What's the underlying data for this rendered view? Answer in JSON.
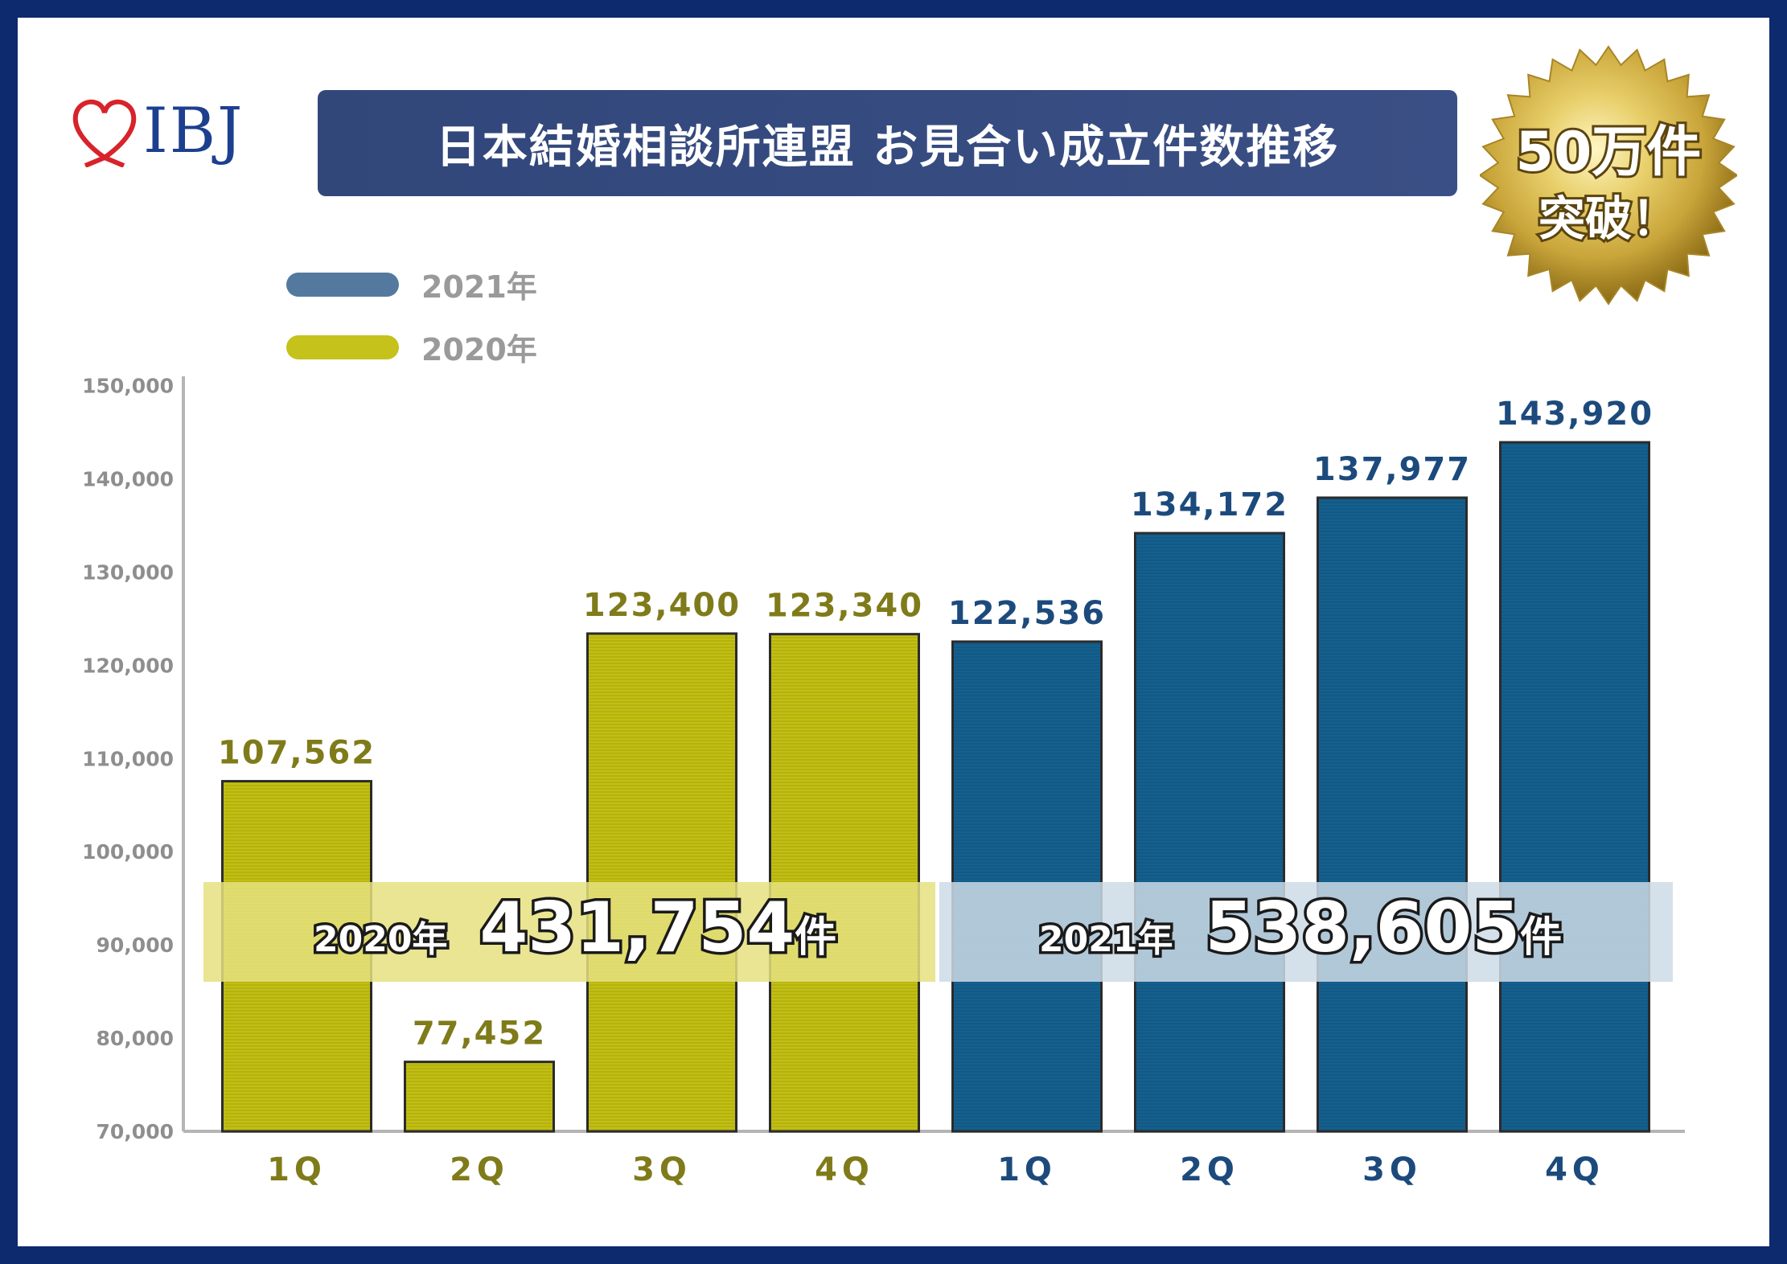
{
  "logo": {
    "text": "IBJ",
    "icon": "heart-ribbon-icon"
  },
  "title": "日本結婚相談所連盟 お見合い成立件数推移",
  "badge": {
    "line1": "50万件",
    "line2": "突破！"
  },
  "legend": [
    {
      "label": "2021年",
      "color": "#537a9e"
    },
    {
      "label": "2020年",
      "color": "#c4c21b"
    }
  ],
  "colors": {
    "bar_2020": "#c2bf12",
    "bar_2021": "#14608f",
    "label_2020": "#7f7b1a",
    "label_2021": "#1c4a7c",
    "band_2020": "#e5e17f",
    "band_2021": "#cddbe6",
    "axis": "#b5b5b5",
    "tick_text": "#8e8e8e"
  },
  "totals": [
    {
      "year": "2020年",
      "value": "431,754",
      "unit": "件"
    },
    {
      "year": "2021年",
      "value": "538,605",
      "unit": "件"
    }
  ],
  "chart_data": {
    "type": "bar",
    "categories": [
      "1Q",
      "2Q",
      "3Q",
      "4Q",
      "1Q",
      "2Q",
      "3Q",
      "4Q"
    ],
    "series": [
      {
        "name": "2020年",
        "values": [
          107562,
          77452,
          123400,
          123340,
          null,
          null,
          null,
          null
        ]
      },
      {
        "name": "2021年",
        "values": [
          null,
          null,
          null,
          null,
          122536,
          134172,
          137977,
          143920
        ]
      }
    ],
    "value_labels": [
      "107,562",
      "77,452",
      "123,400",
      "123,340",
      "122,536",
      "134,172",
      "137,977",
      "143,920"
    ],
    "yticks": [
      70000,
      80000,
      90000,
      100000,
      110000,
      120000,
      130000,
      140000,
      150000
    ],
    "ytick_labels": [
      "70,000",
      "80,000",
      "90,000",
      "100,000",
      "110,000",
      "120,000",
      "130,000",
      "140,000",
      "150,000"
    ],
    "ylim": [
      70000,
      151000
    ],
    "title": "日本結婚相談所連盟 お見合い成立件数推移",
    "xlabel": "",
    "ylabel": "",
    "grid": false,
    "legend_position": "top-left"
  }
}
